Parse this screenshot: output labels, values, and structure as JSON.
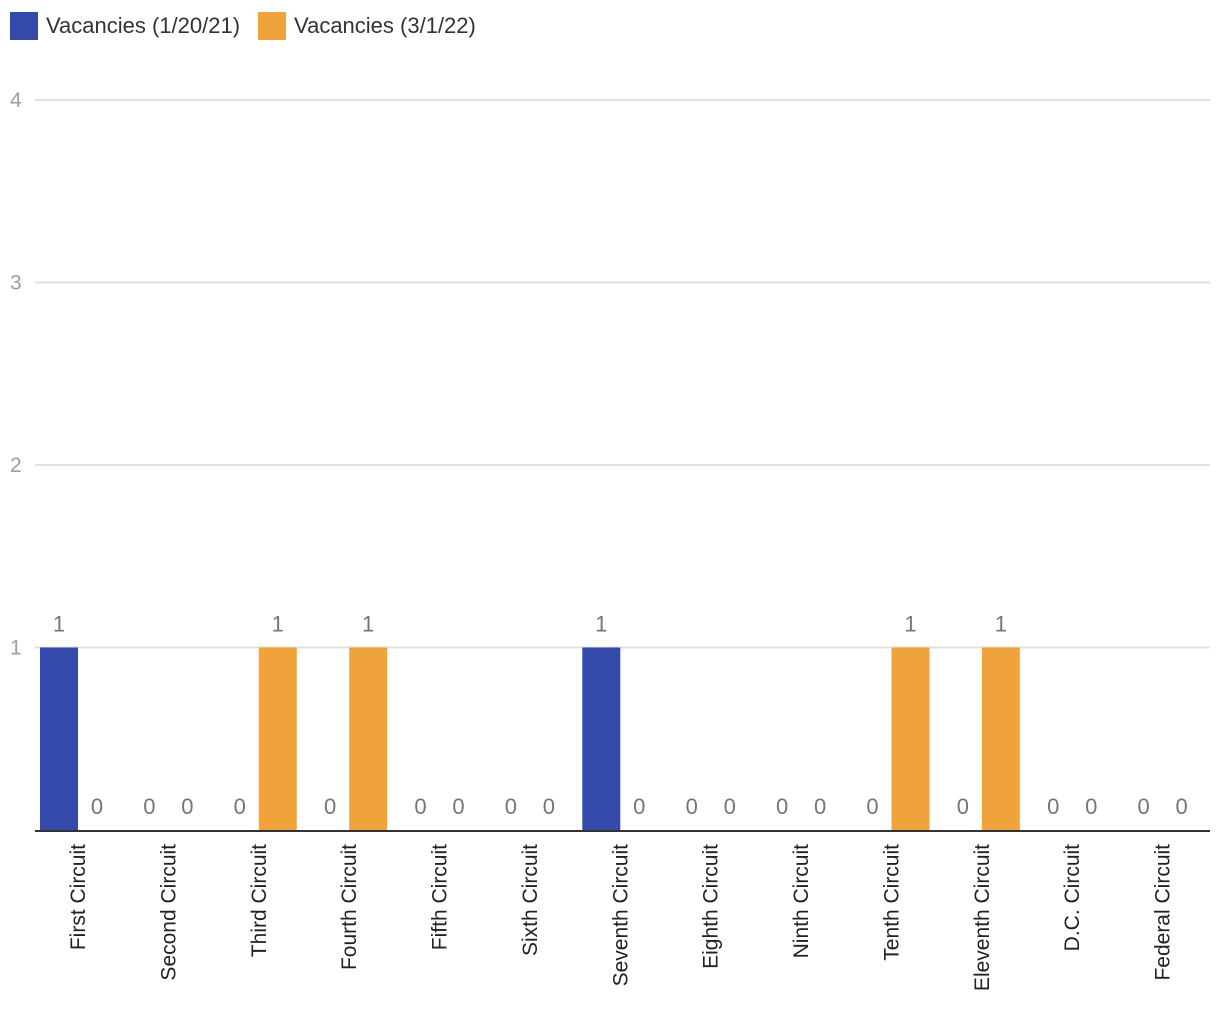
{
  "chart_data": {
    "type": "bar",
    "categories": [
      "First Circuit",
      "Second Circuit",
      "Third Circuit",
      "Fourth Circuit",
      "Fifth Circuit",
      "Sixth Circuit",
      "Seventh Circuit",
      "Eighth Circuit",
      "Ninth Circuit",
      "Tenth Circuit",
      "Eleventh Circuit",
      "D.C. Circuit",
      "Federal Circuit"
    ],
    "series": [
      {
        "name": "Vacancies (1/20/21)",
        "color": "#334aab",
        "values": [
          1,
          0,
          0,
          0,
          0,
          0,
          1,
          0,
          0,
          0,
          0,
          0,
          0
        ]
      },
      {
        "name": "Vacancies (3/1/22)",
        "color": "#f0a33a",
        "values": [
          0,
          0,
          1,
          1,
          0,
          0,
          0,
          0,
          0,
          1,
          1,
          0,
          0
        ]
      }
    ],
    "yticks": [
      "1",
      "2",
      "3",
      "4"
    ],
    "ylim": [
      0,
      4
    ],
    "grid": true,
    "legend": "top-left",
    "title": "",
    "xlabel": "",
    "ylabel": ""
  }
}
